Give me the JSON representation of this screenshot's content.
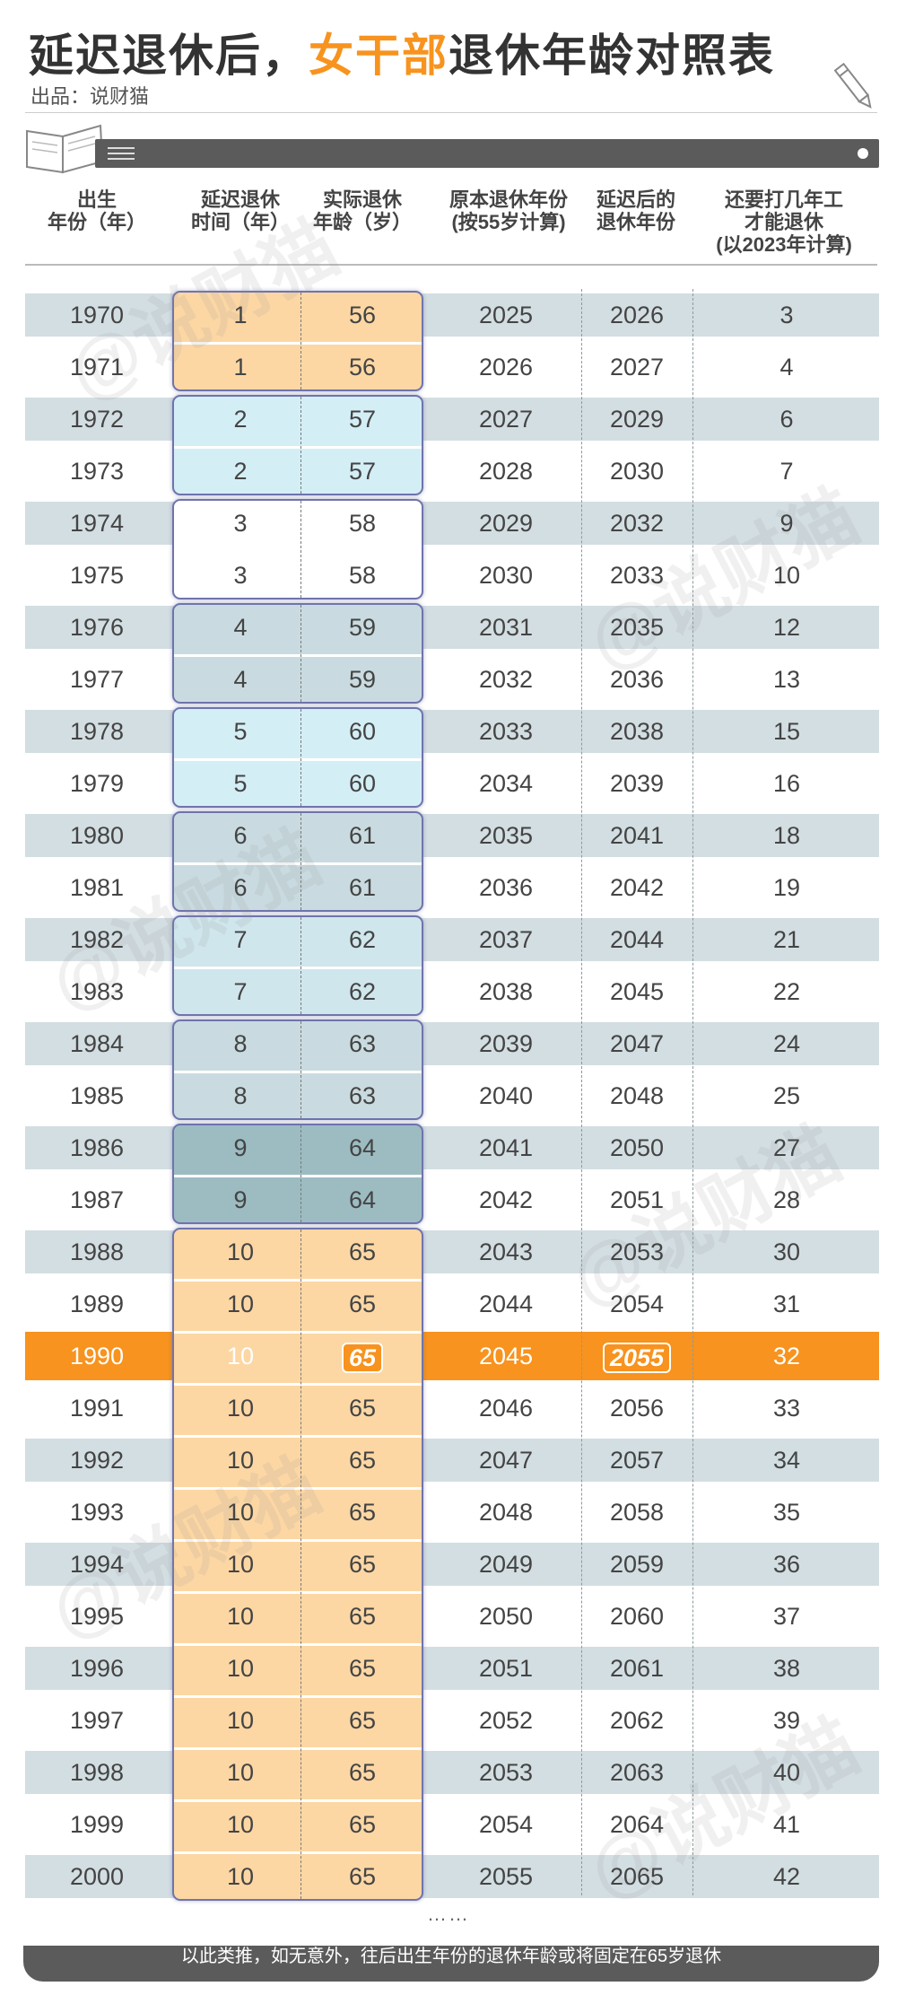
{
  "title": {
    "part1": "延迟退休后，",
    "highlight": "女干部",
    "part2": "退休年龄对照表"
  },
  "source": "出品：说财猫",
  "columns": [
    [
      "出生",
      "年份（年）"
    ],
    [
      "延迟退休",
      "时间（年）"
    ],
    [
      "实际退休",
      "年龄（岁）"
    ],
    [
      "原本退休年份",
      "(按55岁计算)"
    ],
    [
      "延迟后的",
      "退休年份"
    ],
    [
      "还要打几年工",
      "才能退休",
      "(以2023年计算)"
    ]
  ],
  "rows": [
    [
      "1970",
      "1",
      "56",
      "2025",
      "2026",
      "3"
    ],
    [
      "1971",
      "1",
      "56",
      "2026",
      "2027",
      "4"
    ],
    [
      "1972",
      "2",
      "57",
      "2027",
      "2029",
      "6"
    ],
    [
      "1973",
      "2",
      "57",
      "2028",
      "2030",
      "7"
    ],
    [
      "1974",
      "3",
      "58",
      "2029",
      "2032",
      "9"
    ],
    [
      "1975",
      "3",
      "58",
      "2030",
      "2033",
      "10"
    ],
    [
      "1976",
      "4",
      "59",
      "2031",
      "2035",
      "12"
    ],
    [
      "1977",
      "4",
      "59",
      "2032",
      "2036",
      "13"
    ],
    [
      "1978",
      "5",
      "60",
      "2033",
      "2038",
      "15"
    ],
    [
      "1979",
      "5",
      "60",
      "2034",
      "2039",
      "16"
    ],
    [
      "1980",
      "6",
      "61",
      "2035",
      "2041",
      "18"
    ],
    [
      "1981",
      "6",
      "61",
      "2036",
      "2042",
      "19"
    ],
    [
      "1982",
      "7",
      "62",
      "2037",
      "2044",
      "21"
    ],
    [
      "1983",
      "7",
      "62",
      "2038",
      "2045",
      "22"
    ],
    [
      "1984",
      "8",
      "63",
      "2039",
      "2047",
      "24"
    ],
    [
      "1985",
      "8",
      "63",
      "2040",
      "2048",
      "25"
    ],
    [
      "1986",
      "9",
      "64",
      "2041",
      "2050",
      "27"
    ],
    [
      "1987",
      "9",
      "64",
      "2042",
      "2051",
      "28"
    ],
    [
      "1988",
      "10",
      "65",
      "2043",
      "2053",
      "30"
    ],
    [
      "1989",
      "10",
      "65",
      "2044",
      "2054",
      "31"
    ],
    [
      "1990",
      "10",
      "65",
      "2045",
      "2055",
      "32"
    ],
    [
      "1991",
      "10",
      "65",
      "2046",
      "2056",
      "33"
    ],
    [
      "1992",
      "10",
      "65",
      "2047",
      "2057",
      "34"
    ],
    [
      "1993",
      "10",
      "65",
      "2048",
      "2058",
      "35"
    ],
    [
      "1994",
      "10",
      "65",
      "2049",
      "2059",
      "36"
    ],
    [
      "1995",
      "10",
      "65",
      "2050",
      "2060",
      "37"
    ],
    [
      "1996",
      "10",
      "65",
      "2051",
      "2061",
      "38"
    ],
    [
      "1997",
      "10",
      "65",
      "2052",
      "2062",
      "39"
    ],
    [
      "1998",
      "10",
      "65",
      "2053",
      "2063",
      "40"
    ],
    [
      "1999",
      "10",
      "65",
      "2054",
      "2064",
      "41"
    ],
    [
      "2000",
      "10",
      "65",
      "2055",
      "2065",
      "42"
    ]
  ],
  "highlight_row": 20,
  "block_colors": [
    "#fcd7a4",
    "#d4eef6",
    "#ffffff",
    "#c9dbe0",
    "#d4eef6",
    "#c9dbe0",
    "#cfe6ec",
    "#c9dbe0",
    "#9cbcc2",
    "#fcd7a4"
  ],
  "ellipsis": "……",
  "watermark": "@说财猫",
  "footer_text": "以此类推，如无意外，往后出生年份的退休年龄或将固定在65岁退休",
  "colors": {
    "accent": "#f7931e",
    "stripe": "#d3dee2",
    "bar": "#5b5b5b",
    "block_border": "#6f74ad"
  }
}
